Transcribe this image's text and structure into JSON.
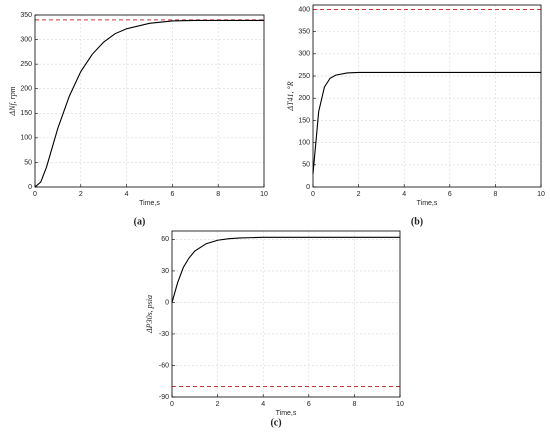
{
  "chart_data": [
    {
      "type": "line",
      "caption": "(a)",
      "xlabel": "Time,s",
      "ylabel": "ΔNf, rpm",
      "x": [
        0,
        0.25,
        0.5,
        0.75,
        1,
        1.5,
        2,
        2.5,
        3,
        3.5,
        4,
        5,
        6,
        7,
        8,
        9,
        10
      ],
      "series": [
        {
          "color": "#000000",
          "values": [
            0,
            10,
            40,
            80,
            120,
            185,
            235,
            270,
            295,
            312,
            322,
            333,
            338,
            339,
            339,
            339,
            339
          ]
        }
      ],
      "reference_line": {
        "value": 340,
        "color": "#c8373a"
      },
      "xlim": [
        0,
        10
      ],
      "xticks": [
        0,
        2,
        4,
        6,
        8,
        10
      ],
      "ylim": [
        0,
        350
      ],
      "yticks": [
        0,
        50,
        100,
        150,
        200,
        250,
        300,
        350
      ],
      "grid": true
    },
    {
      "type": "line",
      "caption": "(b)",
      "xlabel": "Time,s",
      "ylabel": "ΔT41, °R",
      "x": [
        0,
        0.25,
        0.5,
        0.75,
        1,
        1.5,
        2,
        2.5,
        3,
        3.5,
        4,
        5,
        6,
        7,
        8,
        9,
        10
      ],
      "series": [
        {
          "color": "#000000",
          "values": [
            30,
            170,
            225,
            245,
            252,
            257,
            258,
            258,
            258,
            258,
            258,
            258,
            258,
            258,
            258,
            258,
            258
          ]
        }
      ],
      "reference_line": {
        "value": 400,
        "color": "#c8373a"
      },
      "xlim": [
        0,
        10
      ],
      "xticks": [
        0,
        2,
        4,
        6,
        8,
        10
      ],
      "ylim": [
        0,
        410
      ],
      "yticks": [
        0,
        50,
        100,
        150,
        200,
        250,
        300,
        350,
        400
      ],
      "grid": true
    },
    {
      "type": "line",
      "caption": "(c)",
      "xlabel": "Time,s",
      "ylabel": "ΔP30s, psia",
      "x": [
        0,
        0.25,
        0.5,
        0.75,
        1,
        1.5,
        2,
        2.5,
        3,
        3.5,
        4,
        5,
        6,
        7,
        8,
        9,
        10
      ],
      "series": [
        {
          "color": "#000000",
          "values": [
            0,
            19,
            33.5,
            42.4,
            48.9,
            55.9,
            59.2,
            60.7,
            61.4,
            61.7,
            62,
            62,
            62,
            62,
            62,
            62,
            62
          ]
        }
      ],
      "reference_line": {
        "value": -80,
        "color": "#c8373a"
      },
      "xlim": [
        0,
        10
      ],
      "xticks": [
        0,
        2,
        4,
        6,
        8,
        10
      ],
      "ylim": [
        -90,
        68
      ],
      "yticks": [
        -90,
        -60,
        -30,
        0,
        30,
        60
      ],
      "grid": true
    }
  ]
}
